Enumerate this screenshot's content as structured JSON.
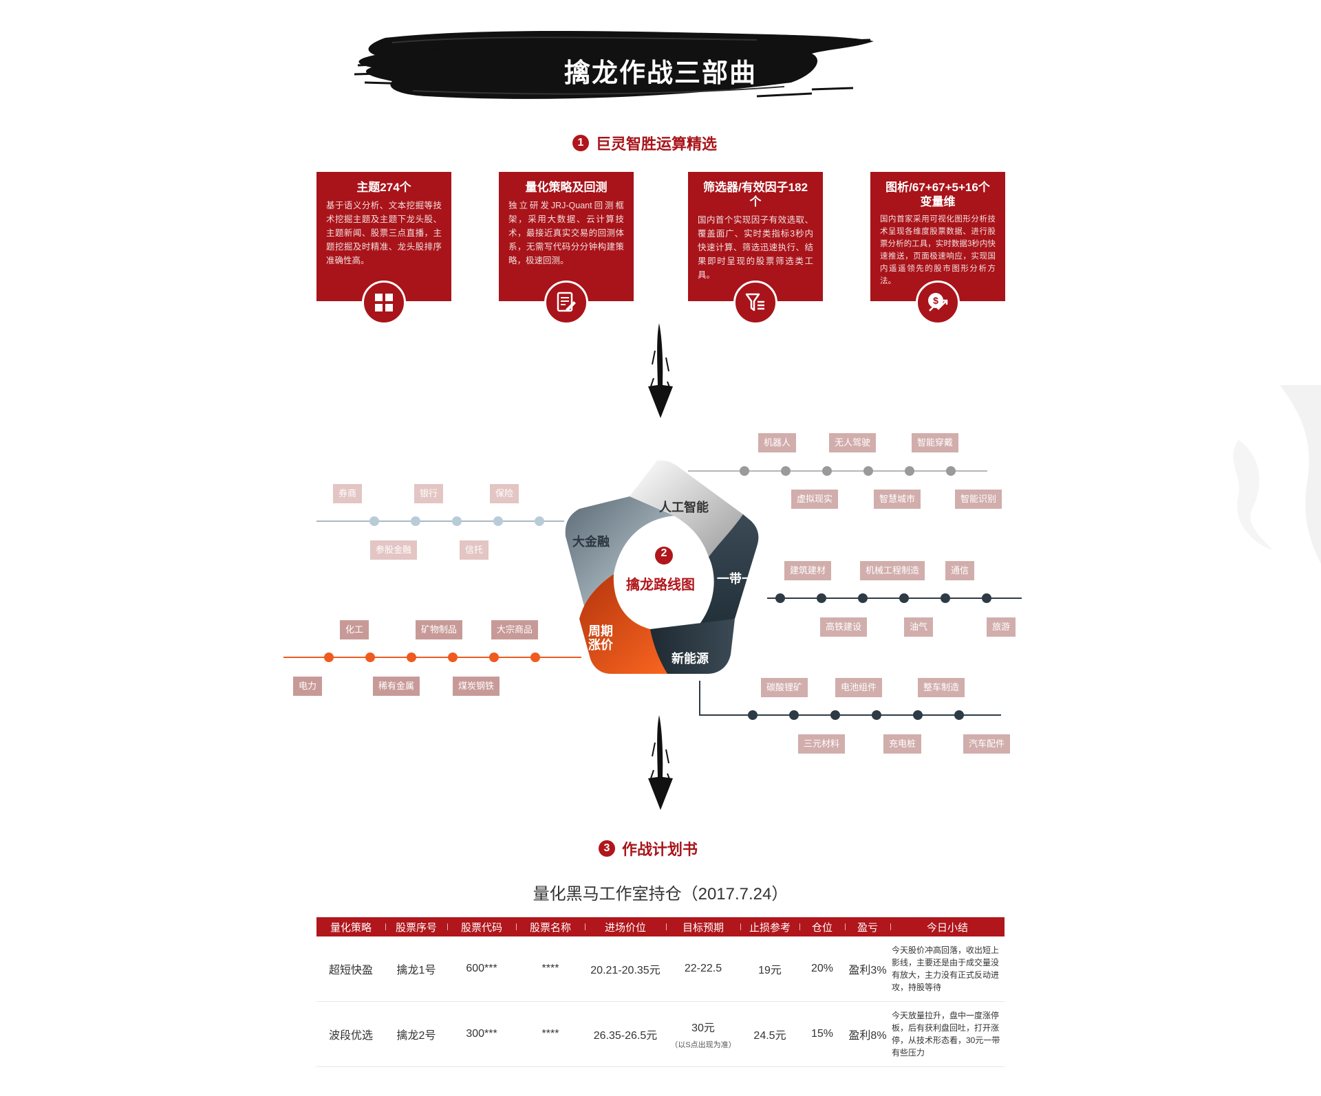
{
  "header": {
    "title": "擒龙作战三部曲"
  },
  "section1": {
    "num": "1",
    "title": "巨灵智胜运算精选"
  },
  "cards": [
    {
      "title": "主题274个",
      "desc": "基于语义分析、文本挖掘等技术挖掘主题及主题下龙头股、主题新闻、股票三点直播，主题挖掘及时精准、龙头股排序准确性高。",
      "icon": "grid-icon"
    },
    {
      "title": "量化策略及回测",
      "desc": "独立研发JRJ-Quant回测框架，采用大数据、云计算技术，最接近真实交易的回测体系，无需写代码分分钟构建策略，极速回测。",
      "icon": "document-edit-icon"
    },
    {
      "title": "筛选器/有效因子182个",
      "desc": "国内首个实现因子有效选取、覆盖面广、实时类指标3秒内快速计算、筛选迅速执行、结果即时呈现的股票筛选类工具。",
      "icon": "filter-icon"
    },
    {
      "title": "图析/67+67+5+16个变量维",
      "desc": "国内首家采用可视化图形分析技术呈现各维度股票数据、进行股票分析的工具，实时数据3秒内快速推送，页面极速响应，实现国内遥遥领先的股市图形分析方法。",
      "icon": "dollar-growth-icon"
    }
  ],
  "section2": {
    "num": "2",
    "title": "擒龙路线图",
    "segments": {
      "ai": "人工智能",
      "finance": "大金融",
      "belt": "一带一路",
      "cycle_line1": "周期",
      "cycle_line2": "涨价",
      "energy": "新能源"
    }
  },
  "routes": {
    "ai_top": [
      "机器人",
      "无人驾驶",
      "智能穿戴"
    ],
    "ai_bottom": [
      "虚拟现实",
      "智慧城市",
      "智能识别"
    ],
    "finance_top": [
      "券商",
      "银行",
      "保险"
    ],
    "finance_bottom": [
      "参股金融",
      "信托"
    ],
    "belt_top": [
      "建筑建材",
      "机械工程制造",
      "通信"
    ],
    "belt_bottom": [
      "高铁建设",
      "油气",
      "旅游"
    ],
    "cycle_top": [
      "化工",
      "矿物制品",
      "大宗商品"
    ],
    "cycle_bottom": [
      "电力",
      "稀有金属",
      "煤炭钢铁"
    ],
    "energy_top": [
      "碳酸锂矿",
      "电池组件",
      "整车制造"
    ],
    "energy_bottom": [
      "三元材料",
      "充电桩",
      "汽车配件"
    ]
  },
  "section3": {
    "num": "3",
    "title": "作战计划书"
  },
  "table": {
    "title": "量化黑马工作室持仓（2017.7.24）",
    "headers": [
      "量化策略",
      "股票序号",
      "股票代码",
      "股票名称",
      "进场价位",
      "目标预期",
      "止损参考",
      "仓位",
      "盈亏",
      "今日小结"
    ],
    "rows": [
      {
        "strategy": "超短快盈",
        "seq": "擒龙1号",
        "code": "600***",
        "name": "****",
        "entry": "20.21-20.35元",
        "target": "22-22.5",
        "target_note": "",
        "stop": "19元",
        "position": "20%",
        "pnl": "盈利3%",
        "summary": "今天股价冲高回落，收出短上影线，主要还是由于成交量没有放大，主力没有正式反动进攻，持股等待"
      },
      {
        "strategy": "波段优选",
        "seq": "擒龙2号",
        "code": "300***",
        "name": "****",
        "entry": "26.35-26.5元",
        "target": "30元",
        "target_note": "（以S点出现为准）",
        "stop": "24.5元",
        "position": "15%",
        "pnl": "盈利8%",
        "summary": "今天放量拉升，盘中一度涨停板，后有获利盘回吐，打开涨停，从技术形态看，30元一带有些压力"
      }
    ]
  },
  "colors": {
    "brand_red": "#a8141a",
    "orange": "#f05a1e",
    "dark_navy": "#2e3a44",
    "light_blue": "#b8c9d3",
    "gray": "#9a9a9a"
  }
}
